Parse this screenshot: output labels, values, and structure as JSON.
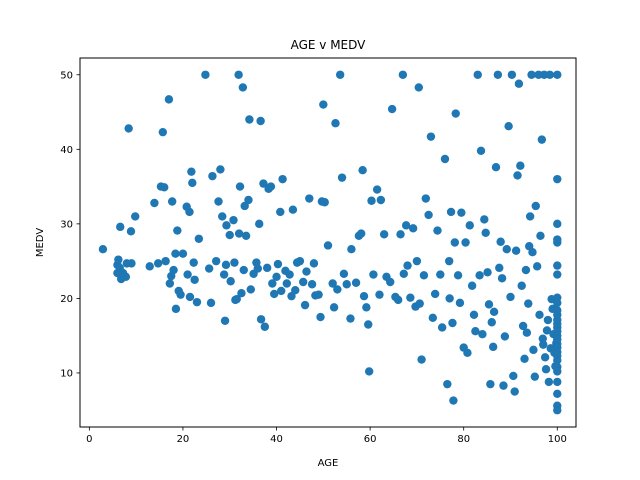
{
  "chart_data": {
    "type": "scatter",
    "title": "AGE v MEDV",
    "xlabel": "AGE",
    "ylabel": "MEDV",
    "xlim": [
      -2,
      104
    ],
    "ylim": [
      2.75,
      52.25
    ],
    "xticks": [
      0,
      20,
      40,
      60,
      80,
      100
    ],
    "yticks": [
      10,
      20,
      30,
      40,
      50
    ],
    "grid": false,
    "color": "#1f77b4",
    "series": [
      {
        "name": "",
        "points": [
          [
            2.9,
            26.6
          ],
          [
            6,
            23.4
          ],
          [
            6,
            24.5
          ],
          [
            6.2,
            25.2
          ],
          [
            6.5,
            24.1
          ],
          [
            6.6,
            29.6
          ],
          [
            6.8,
            22.6
          ],
          [
            7.2,
            23.4
          ],
          [
            7.8,
            22.9
          ],
          [
            8,
            24.7
          ],
          [
            8.4,
            42.8
          ],
          [
            8.9,
            29
          ],
          [
            9,
            24.7
          ],
          [
            9.8,
            31
          ],
          [
            12.9,
            24.3
          ],
          [
            13.9,
            32.8
          ],
          [
            14.7,
            24.7
          ],
          [
            15.3,
            35
          ],
          [
            15.7,
            42.3
          ],
          [
            16,
            34.9
          ],
          [
            16.3,
            25
          ],
          [
            17,
            46.7
          ],
          [
            17.2,
            22
          ],
          [
            17.5,
            23
          ],
          [
            17.7,
            33
          ],
          [
            18,
            23.8
          ],
          [
            18.4,
            26
          ],
          [
            18.5,
            18.6
          ],
          [
            18.8,
            29.1
          ],
          [
            19.1,
            21
          ],
          [
            19.5,
            20.5
          ],
          [
            20,
            26
          ],
          [
            20.8,
            32.3
          ],
          [
            21,
            23.2
          ],
          [
            21.4,
            31.6
          ],
          [
            21.5,
            20.2
          ],
          [
            21.8,
            37
          ],
          [
            22,
            35.5
          ],
          [
            22.3,
            24.8
          ],
          [
            22.5,
            22.5
          ],
          [
            23,
            19.5
          ],
          [
            23.4,
            28
          ],
          [
            24.8,
            50
          ],
          [
            25.6,
            24
          ],
          [
            26,
            19.4
          ],
          [
            26.3,
            36.4
          ],
          [
            27.1,
            25
          ],
          [
            27.6,
            33
          ],
          [
            28,
            37.3
          ],
          [
            28.4,
            31
          ],
          [
            28.8,
            23.2
          ],
          [
            29,
            17
          ],
          [
            29.2,
            24.5
          ],
          [
            29.3,
            29.8
          ],
          [
            30,
            28.5
          ],
          [
            30.2,
            22.3
          ],
          [
            30.8,
            30.5
          ],
          [
            31,
            24.8
          ],
          [
            31.2,
            19.8
          ],
          [
            31.5,
            19.9
          ],
          [
            31.9,
            50
          ],
          [
            32,
            28.7
          ],
          [
            32.2,
            35
          ],
          [
            32.5,
            20.7
          ],
          [
            32.8,
            48.3
          ],
          [
            33,
            23.8
          ],
          [
            33.2,
            32.4
          ],
          [
            33.5,
            28.4
          ],
          [
            34,
            33.2
          ],
          [
            34.2,
            44
          ],
          [
            34.5,
            21.2
          ],
          [
            35.1,
            23.3
          ],
          [
            35.7,
            24.8
          ],
          [
            36,
            24
          ],
          [
            36.3,
            30
          ],
          [
            36.6,
            43.8
          ],
          [
            36.7,
            17.2
          ],
          [
            37.2,
            35.4
          ],
          [
            37.5,
            16.2
          ],
          [
            38,
            24.1
          ],
          [
            38.3,
            34.7
          ],
          [
            38.8,
            35
          ],
          [
            39.1,
            22
          ],
          [
            39.5,
            20.6
          ],
          [
            40,
            22.9
          ],
          [
            40.3,
            24.6
          ],
          [
            40.8,
            31.6
          ],
          [
            41,
            21
          ],
          [
            41.3,
            36
          ],
          [
            41.9,
            23.7
          ],
          [
            42.2,
            22
          ],
          [
            42.8,
            23.2
          ],
          [
            43.2,
            20.3
          ],
          [
            43.5,
            31.9
          ],
          [
            44,
            21.1
          ],
          [
            44.4,
            24.8
          ],
          [
            45,
            25
          ],
          [
            45.7,
            22.2
          ],
          [
            46.1,
            19.1
          ],
          [
            46.4,
            23.6
          ],
          [
            47,
            33.4
          ],
          [
            47.6,
            21.9
          ],
          [
            48,
            24.7
          ],
          [
            48.3,
            20.4
          ],
          [
            49,
            20.5
          ],
          [
            49.4,
            17.5
          ],
          [
            49.7,
            33
          ],
          [
            50,
            46
          ],
          [
            50.3,
            32.9
          ],
          [
            51,
            27.1
          ],
          [
            52,
            22
          ],
          [
            52.3,
            18.8
          ],
          [
            52.6,
            43.5
          ],
          [
            53,
            21.2
          ],
          [
            53.6,
            50
          ],
          [
            54,
            36.2
          ],
          [
            54.4,
            23.3
          ],
          [
            55,
            21.9
          ],
          [
            55.8,
            17.3
          ],
          [
            56,
            26.6
          ],
          [
            57,
            22.1
          ],
          [
            57.6,
            28.4
          ],
          [
            58.1,
            28.7
          ],
          [
            58.4,
            37.2
          ],
          [
            58.7,
            20.3
          ],
          [
            59.2,
            18.8
          ],
          [
            59.6,
            16.5
          ],
          [
            59.8,
            10.2
          ],
          [
            60.3,
            33.1
          ],
          [
            60.7,
            23.2
          ],
          [
            61.5,
            34.6
          ],
          [
            62,
            20.5
          ],
          [
            62.3,
            33.2
          ],
          [
            63,
            28.6
          ],
          [
            63.5,
            22.9
          ],
          [
            64.3,
            22.2
          ],
          [
            64.7,
            45.4
          ],
          [
            65.4,
            20.2
          ],
          [
            66,
            19.8
          ],
          [
            66.5,
            28.6
          ],
          [
            67,
            50
          ],
          [
            67.2,
            23.3
          ],
          [
            67.7,
            29.8
          ],
          [
            68,
            24.4
          ],
          [
            68.6,
            20.1
          ],
          [
            69.2,
            29.4
          ],
          [
            69.7,
            18.9
          ],
          [
            70,
            25
          ],
          [
            70.4,
            48.3
          ],
          [
            70.6,
            19.3
          ],
          [
            71,
            11.8
          ],
          [
            71.5,
            23.1
          ],
          [
            71.9,
            33.4
          ],
          [
            72.5,
            31.2
          ],
          [
            73,
            41.7
          ],
          [
            73.4,
            17.4
          ],
          [
            73.9,
            20.6
          ],
          [
            74.4,
            29.1
          ],
          [
            75,
            23.2
          ],
          [
            75.4,
            16.1
          ],
          [
            76,
            38.7
          ],
          [
            76.5,
            8.5
          ],
          [
            76.9,
            25
          ],
          [
            77,
            20
          ],
          [
            77.3,
            31.6
          ],
          [
            77.6,
            16.7
          ],
          [
            77.8,
            6.3
          ],
          [
            78.1,
            27.5
          ],
          [
            78.3,
            44.8
          ],
          [
            78.8,
            23.1
          ],
          [
            79.2,
            19.4
          ],
          [
            79.5,
            31.5
          ],
          [
            80,
            13.4
          ],
          [
            80.4,
            27.5
          ],
          [
            80.8,
            12.7
          ],
          [
            81.3,
            29.8
          ],
          [
            81.8,
            21.7
          ],
          [
            82.2,
            17.8
          ],
          [
            82.5,
            15.6
          ],
          [
            83,
            50
          ],
          [
            83.4,
            23.1
          ],
          [
            83.7,
            39.8
          ],
          [
            84,
            15.2
          ],
          [
            84.4,
            30.6
          ],
          [
            84.7,
            28.8
          ],
          [
            85.1,
            23.5
          ],
          [
            85.4,
            19.2
          ],
          [
            85.7,
            8.5
          ],
          [
            86,
            16.8
          ],
          [
            86.3,
            13.5
          ],
          [
            86.5,
            18.2
          ],
          [
            86.9,
            37.6
          ],
          [
            87.3,
            50
          ],
          [
            87.6,
            24.1
          ],
          [
            87.9,
            27.6
          ],
          [
            88.2,
            22.7
          ],
          [
            88.5,
            8.3
          ],
          [
            88.8,
            14.9
          ],
          [
            89.2,
            26.6
          ],
          [
            89.6,
            43.1
          ],
          [
            90,
            20.2
          ],
          [
            90.3,
            50
          ],
          [
            90.6,
            9.6
          ],
          [
            90.9,
            7.5
          ],
          [
            91.2,
            26.4
          ],
          [
            91.5,
            36.5
          ],
          [
            91.8,
            48.8
          ],
          [
            92.1,
            37.8
          ],
          [
            92.4,
            21.7
          ],
          [
            92.7,
            16.3
          ],
          [
            93,
            11.9
          ],
          [
            93.3,
            23.8
          ],
          [
            93.5,
            15.4
          ],
          [
            93.8,
            19.3
          ],
          [
            94,
            27
          ],
          [
            94.2,
            31
          ],
          [
            94.5,
            50
          ],
          [
            94.7,
            26.2
          ],
          [
            94.9,
            13.1
          ],
          [
            95.2,
            9.5
          ],
          [
            95.4,
            32.4
          ],
          [
            95.7,
            24.3
          ],
          [
            96,
            50
          ],
          [
            96.2,
            17.8
          ],
          [
            96.4,
            28.4
          ],
          [
            96.7,
            41.3
          ],
          [
            96.9,
            14.6
          ],
          [
            97,
            13.8
          ],
          [
            97.2,
            50
          ],
          [
            97.4,
            12.1
          ],
          [
            97.6,
            10.5
          ],
          [
            97.8,
            15.7
          ],
          [
            98,
            17.1
          ],
          [
            98.2,
            8.8
          ],
          [
            98.4,
            50
          ],
          [
            98.6,
            13.3
          ],
          [
            98.8,
            19.9
          ],
          [
            99,
            18.6
          ],
          [
            99.2,
            15.2
          ],
          [
            99.4,
            12.7
          ],
          [
            99.6,
            10.9
          ],
          [
            99.8,
            14
          ],
          [
            100,
            50
          ],
          [
            100,
            36
          ],
          [
            100,
            30
          ],
          [
            100,
            27.9
          ],
          [
            100,
            27.5
          ],
          [
            100,
            24.4
          ],
          [
            100,
            23.2
          ],
          [
            100,
            20.1
          ],
          [
            100,
            19.4
          ],
          [
            100,
            18.4
          ],
          [
            100,
            17.8
          ],
          [
            100,
            17.1
          ],
          [
            100,
            16.6
          ],
          [
            100,
            16.1
          ],
          [
            100,
            15.6
          ],
          [
            100,
            15
          ],
          [
            100,
            14.5
          ],
          [
            100,
            13.9
          ],
          [
            100,
            13.4
          ],
          [
            100,
            12.8
          ],
          [
            100,
            12.3
          ],
          [
            100,
            11.7
          ],
          [
            100,
            10.8
          ],
          [
            100,
            10.2
          ],
          [
            100,
            8.8
          ],
          [
            100,
            7.2
          ],
          [
            100,
            5.6
          ],
          [
            100,
            5
          ]
        ]
      }
    ]
  }
}
